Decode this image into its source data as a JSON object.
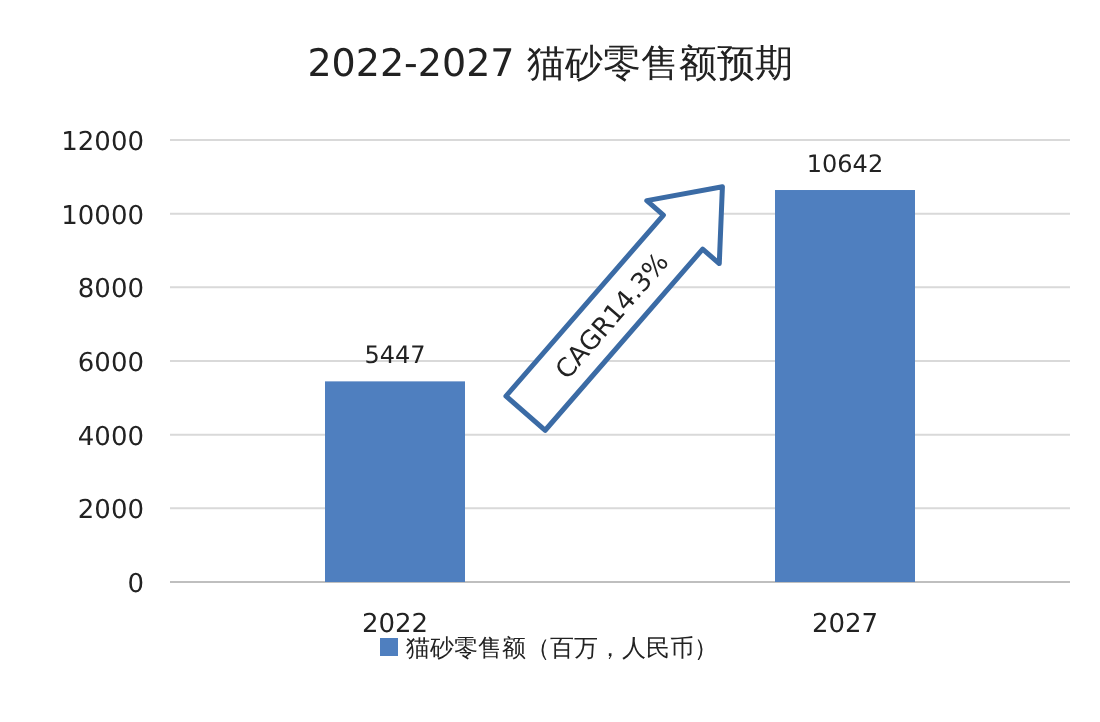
{
  "chart_data": {
    "type": "bar",
    "title": "2022-2027 猫砂零售额预期",
    "categories": [
      "2022",
      "2027"
    ],
    "series": [
      {
        "name": "猫砂零售额（百万，人民币）",
        "color": "#4f7fbf",
        "values": [
          5447,
          10642
        ]
      }
    ],
    "ylim": [
      0,
      12000
    ],
    "yticks": [
      0,
      2000,
      4000,
      6000,
      8000,
      10000,
      12000
    ],
    "grid": "y",
    "legend": "bottom",
    "data_labels": true,
    "annotations": [
      "CAGR14.3%"
    ]
  }
}
